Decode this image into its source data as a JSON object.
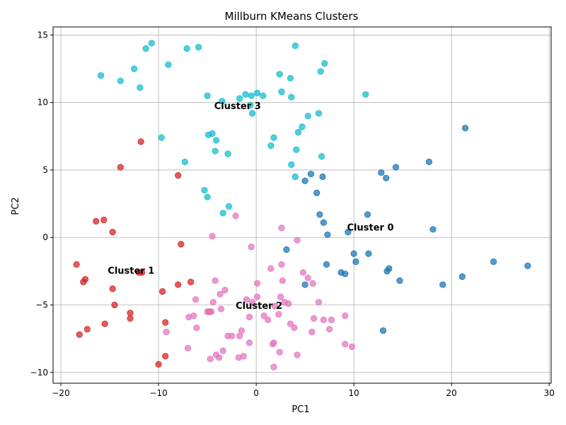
{
  "chart_data": {
    "type": "scatter",
    "title": "Millburn KMeans Clusters",
    "xlabel": "PC1",
    "ylabel": "PC2",
    "xlim": [
      -20.8,
      30.2
    ],
    "ylim": [
      -10.8,
      15.6
    ],
    "xticks": [
      -20,
      -10,
      0,
      10,
      20,
      30
    ],
    "xtick_labels": [
      "−20",
      "−10",
      "0",
      "10",
      "20",
      "30"
    ],
    "yticks": [
      -10,
      -5,
      0,
      5,
      10,
      15
    ],
    "ytick_labels": [
      "−10",
      "−5",
      "0",
      "5",
      "10",
      "15"
    ],
    "grid": true,
    "legend": "none",
    "series": [
      {
        "id": "cluster-0",
        "color": "#1f77b4",
        "points": [
          [
            5.6,
            4.7
          ],
          [
            6.8,
            4.5
          ],
          [
            5.0,
            4.2
          ],
          [
            6.2,
            3.3
          ],
          [
            12.8,
            4.8
          ],
          [
            13.3,
            4.4
          ],
          [
            14.3,
            5.2
          ],
          [
            17.7,
            5.6
          ],
          [
            21.4,
            8.1
          ],
          [
            6.5,
            1.7
          ],
          [
            6.9,
            1.1
          ],
          [
            7.3,
            0.2
          ],
          [
            9.4,
            0.4
          ],
          [
            11.4,
            1.7
          ],
          [
            18.1,
            0.6
          ],
          [
            3.1,
            -0.9
          ],
          [
            10.0,
            -1.2
          ],
          [
            10.2,
            -1.8
          ],
          [
            11.5,
            -1.2
          ],
          [
            7.2,
            -2.0
          ],
          [
            8.7,
            -2.6
          ],
          [
            9.1,
            -2.7
          ],
          [
            13.4,
            -2.5
          ],
          [
            13.6,
            -2.3
          ],
          [
            14.7,
            -3.2
          ],
          [
            19.1,
            -3.5
          ],
          [
            21.1,
            -2.9
          ],
          [
            24.3,
            -1.8
          ],
          [
            27.8,
            -2.1
          ],
          [
            5.0,
            -3.5
          ],
          [
            13.0,
            -6.9
          ]
        ]
      },
      {
        "id": "cluster-1",
        "color": "#d62728",
        "points": [
          [
            -11.8,
            7.1
          ],
          [
            -13.9,
            5.2
          ],
          [
            -8.0,
            4.6
          ],
          [
            -16.4,
            1.2
          ],
          [
            -15.6,
            1.3
          ],
          [
            -14.7,
            0.4
          ],
          [
            -7.7,
            -0.5
          ],
          [
            -18.4,
            -2.0
          ],
          [
            -17.5,
            -3.1
          ],
          [
            -17.7,
            -3.3
          ],
          [
            -12.0,
            -2.6
          ],
          [
            -11.7,
            -2.6
          ],
          [
            -8.0,
            -3.5
          ],
          [
            -6.7,
            -3.3
          ],
          [
            -9.6,
            -4.0
          ],
          [
            -14.7,
            -3.8
          ],
          [
            -14.5,
            -5.0
          ],
          [
            -12.9,
            -5.6
          ],
          [
            -12.9,
            -6.0
          ],
          [
            -15.5,
            -6.4
          ],
          [
            -17.3,
            -6.8
          ],
          [
            -18.1,
            -7.2
          ],
          [
            -9.3,
            -6.3
          ],
          [
            -4.8,
            -5.5
          ],
          [
            -9.3,
            -8.8
          ],
          [
            -10.0,
            -9.4
          ]
        ]
      },
      {
        "id": "cluster-2",
        "color": "#e377c2",
        "points": [
          [
            -2.1,
            1.6
          ],
          [
            -4.5,
            0.1
          ],
          [
            2.6,
            0.7
          ],
          [
            4.2,
            -0.2
          ],
          [
            -0.5,
            -0.7
          ],
          [
            1.5,
            -2.3
          ],
          [
            2.6,
            -2.0
          ],
          [
            4.8,
            -2.6
          ],
          [
            5.3,
            -3.0
          ],
          [
            5.8,
            -3.4
          ],
          [
            -4.2,
            -3.2
          ],
          [
            0.1,
            -3.4
          ],
          [
            2.7,
            -3.2
          ],
          [
            -3.2,
            -3.9
          ],
          [
            -3.7,
            -4.2
          ],
          [
            -6.2,
            -4.6
          ],
          [
            -4.4,
            -4.8
          ],
          [
            -1.0,
            -4.6
          ],
          [
            0.1,
            -4.4
          ],
          [
            2.5,
            -4.4
          ],
          [
            -0.4,
            -4.8
          ],
          [
            1.9,
            -5.1
          ],
          [
            2.9,
            -4.8
          ],
          [
            3.3,
            -4.9
          ],
          [
            6.4,
            -4.8
          ],
          [
            -3.6,
            -5.3
          ],
          [
            -5.0,
            -5.5
          ],
          [
            -4.6,
            -5.5
          ],
          [
            -6.4,
            -5.8
          ],
          [
            -6.9,
            -5.9
          ],
          [
            -0.7,
            -5.9
          ],
          [
            0.8,
            -5.8
          ],
          [
            1.2,
            -6.1
          ],
          [
            2.3,
            -5.7
          ],
          [
            5.9,
            -6.0
          ],
          [
            6.9,
            -6.1
          ],
          [
            7.7,
            -6.1
          ],
          [
            9.1,
            -5.8
          ],
          [
            -6.1,
            -6.7
          ],
          [
            -9.2,
            -7.0
          ],
          [
            3.5,
            -6.4
          ],
          [
            3.9,
            -6.7
          ],
          [
            5.7,
            -7.0
          ],
          [
            7.5,
            -6.8
          ],
          [
            -1.5,
            -6.9
          ],
          [
            -1.7,
            -7.3
          ],
          [
            -2.5,
            -7.3
          ],
          [
            -2.9,
            -7.3
          ],
          [
            -0.7,
            -7.8
          ],
          [
            1.7,
            -7.9
          ],
          [
            1.8,
            -7.8
          ],
          [
            9.1,
            -7.9
          ],
          [
            9.8,
            -8.1
          ],
          [
            -7.0,
            -8.2
          ],
          [
            -3.4,
            -8.4
          ],
          [
            -1.3,
            -8.8
          ],
          [
            -4.1,
            -8.7
          ],
          [
            -4.7,
            -9.0
          ],
          [
            -3.8,
            -8.9
          ],
          [
            -1.8,
            -8.9
          ],
          [
            2.4,
            -8.5
          ],
          [
            4.2,
            -8.7
          ],
          [
            1.8,
            -9.6
          ]
        ]
      },
      {
        "id": "cluster-3",
        "color": "#17becf",
        "points": [
          [
            -10.7,
            14.4
          ],
          [
            -11.3,
            14.0
          ],
          [
            -7.1,
            14.0
          ],
          [
            -5.9,
            14.1
          ],
          [
            4.0,
            14.2
          ],
          [
            -15.9,
            12.0
          ],
          [
            -12.5,
            12.5
          ],
          [
            -9.0,
            12.8
          ],
          [
            -13.9,
            11.6
          ],
          [
            -11.9,
            11.1
          ],
          [
            7.0,
            12.9
          ],
          [
            6.6,
            12.3
          ],
          [
            2.4,
            12.1
          ],
          [
            3.5,
            11.8
          ],
          [
            2.6,
            10.8
          ],
          [
            3.6,
            10.4
          ],
          [
            11.2,
            10.6
          ],
          [
            -5.0,
            10.5
          ],
          [
            -3.5,
            10.1
          ],
          [
            -1.7,
            10.3
          ],
          [
            -1.1,
            10.6
          ],
          [
            -0.5,
            10.5
          ],
          [
            0.1,
            10.7
          ],
          [
            0.7,
            10.5
          ],
          [
            -0.6,
            9.8
          ],
          [
            -0.4,
            9.2
          ],
          [
            5.3,
            9.0
          ],
          [
            6.4,
            9.2
          ],
          [
            -4.5,
            7.7
          ],
          [
            -4.9,
            7.6
          ],
          [
            -4.1,
            7.2
          ],
          [
            -9.7,
            7.4
          ],
          [
            1.8,
            7.4
          ],
          [
            1.5,
            6.8
          ],
          [
            4.7,
            8.2
          ],
          [
            4.3,
            7.8
          ],
          [
            -4.2,
            6.4
          ],
          [
            -2.9,
            6.2
          ],
          [
            4.1,
            6.5
          ],
          [
            6.7,
            6.0
          ],
          [
            -7.3,
            5.6
          ],
          [
            3.6,
            5.4
          ],
          [
            4.0,
            4.5
          ],
          [
            -5.3,
            3.5
          ],
          [
            -5.0,
            3.0
          ],
          [
            -2.8,
            2.3
          ],
          [
            -3.4,
            1.8
          ]
        ]
      }
    ],
    "annotations": [
      {
        "text": "Cluster 0",
        "x": 9.3,
        "y": 0.5
      },
      {
        "text": "Cluster 1",
        "x": -15.2,
        "y": -2.7
      },
      {
        "text": "Cluster 2",
        "x": -2.1,
        "y": -5.3
      },
      {
        "text": "Cluster 3",
        "x": -4.3,
        "y": 9.5
      }
    ]
  }
}
